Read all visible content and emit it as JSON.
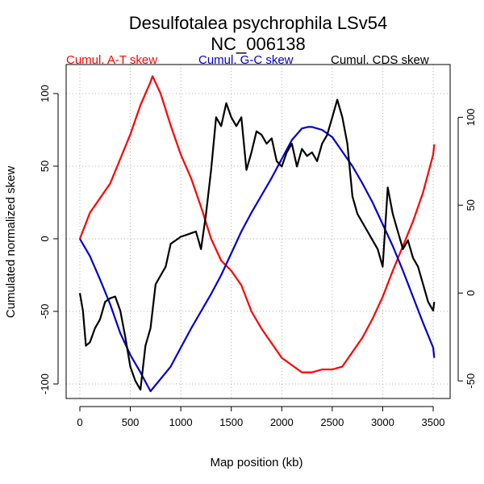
{
  "chart_data": {
    "type": "line",
    "title": "Desulfotalea psychrophila LSv54",
    "subtitle": "NC_006138",
    "xlabel": "Map position (kb)",
    "ylabel": "Cumulated normalized skew",
    "xlim": [
      0,
      3550
    ],
    "ylim": [
      -110,
      120
    ],
    "x_ticks": [
      0,
      500,
      1000,
      1500,
      2000,
      2500,
      3000,
      3500
    ],
    "y_ticks": [
      -100,
      -50,
      0,
      50,
      100
    ],
    "y2lim": [
      -60,
      130
    ],
    "y2_ticks": [
      -50,
      0,
      50,
      100
    ],
    "grid": "vertical dotted",
    "legend_position": "top",
    "series": [
      {
        "name": "Cumul. A-T skew",
        "color": "#ff0000",
        "axis": "left",
        "x": [
          0,
          100,
          200,
          300,
          400,
          500,
          600,
          700,
          720,
          800,
          900,
          1000,
          1100,
          1200,
          1300,
          1400,
          1500,
          1600,
          1700,
          1800,
          1900,
          2000,
          2100,
          2200,
          2300,
          2400,
          2500,
          2600,
          2700,
          2800,
          2900,
          3000,
          3100,
          3200,
          3300,
          3400,
          3500,
          3510
        ],
        "y": [
          0,
          18,
          28,
          38,
          55,
          72,
          92,
          108,
          112,
          100,
          78,
          58,
          42,
          22,
          0,
          -15,
          -22,
          -32,
          -50,
          -62,
          -72,
          -82,
          -87,
          -92,
          -92,
          -90,
          -90,
          -88,
          -78,
          -68,
          -55,
          -40,
          -22,
          -5,
          12,
          32,
          58,
          65
        ]
      },
      {
        "name": "Cumul. G-C skew",
        "color": "#0000cc",
        "axis": "left",
        "x": [
          0,
          100,
          200,
          300,
          400,
          500,
          600,
          700,
          900,
          1000,
          1100,
          1200,
          1300,
          1400,
          1500,
          1600,
          1700,
          1800,
          1900,
          2000,
          2100,
          2200,
          2260,
          2300,
          2400,
          2500,
          2600,
          2700,
          2800,
          2900,
          3000,
          3100,
          3200,
          3300,
          3400,
          3500,
          3510
        ],
        "y": [
          0,
          -12,
          -28,
          -45,
          -65,
          -80,
          -92,
          -105,
          -88,
          -75,
          -62,
          -50,
          -38,
          -25,
          -10,
          5,
          18,
          30,
          42,
          55,
          68,
          76,
          77,
          77,
          75,
          70,
          60,
          50,
          38,
          25,
          10,
          -5,
          -22,
          -40,
          -58,
          -75,
          -82
        ]
      },
      {
        "name": "Cumul. CDS skew",
        "color": "#000000",
        "axis": "right",
        "x": [
          0,
          30,
          60,
          100,
          150,
          200,
          250,
          300,
          350,
          400,
          450,
          500,
          550,
          600,
          650,
          700,
          750,
          800,
          850,
          900,
          950,
          1000,
          1050,
          1100,
          1150,
          1200,
          1250,
          1300,
          1350,
          1400,
          1450,
          1500,
          1550,
          1600,
          1650,
          1700,
          1750,
          1800,
          1850,
          1900,
          1950,
          2000,
          2050,
          2100,
          2150,
          2200,
          2250,
          2300,
          2350,
          2400,
          2450,
          2500,
          2550,
          2600,
          2650,
          2700,
          2750,
          2800,
          2850,
          2900,
          2950,
          3000,
          3050,
          3100,
          3150,
          3200,
          3250,
          3300,
          3350,
          3400,
          3450,
          3500,
          3510
        ],
        "y": [
          0,
          -10,
          -30,
          -28,
          -20,
          -15,
          -5,
          -3,
          -2,
          -10,
          -25,
          -42,
          -50,
          -55,
          -30,
          -20,
          5,
          10,
          15,
          28,
          30,
          32,
          33,
          34,
          35,
          25,
          45,
          70,
          100,
          95,
          108,
          100,
          95,
          100,
          70,
          80,
          92,
          90,
          85,
          88,
          75,
          72,
          80,
          85,
          72,
          82,
          78,
          80,
          75,
          85,
          90,
          100,
          110,
          100,
          85,
          55,
          45,
          40,
          35,
          30,
          25,
          15,
          60,
          45,
          35,
          25,
          30,
          20,
          15,
          5,
          -5,
          -10,
          -5
        ]
      }
    ]
  }
}
